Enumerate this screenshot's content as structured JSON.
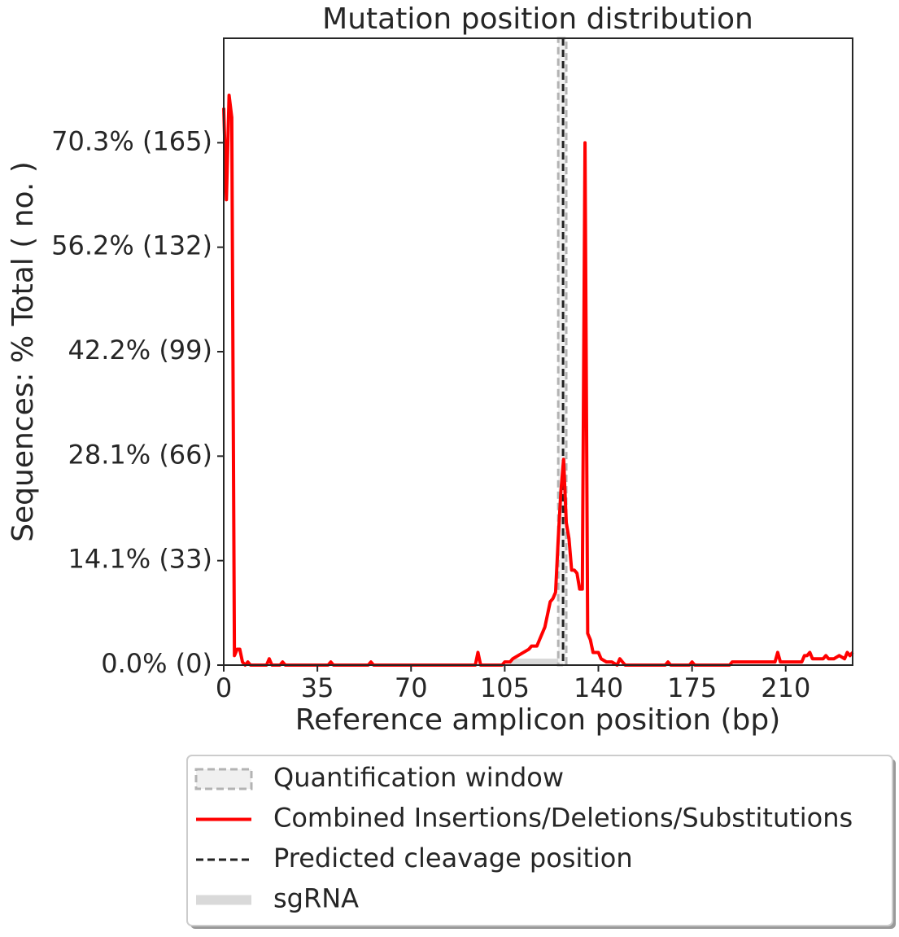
{
  "chart_data": {
    "type": "line",
    "title": "Mutation position distribution",
    "x_label": "Reference amplicon position (bp)",
    "y_label": "Sequences: % Total ( no. )",
    "xlim": [
      0,
      235
    ],
    "xticks": [
      0,
      35,
      70,
      105,
      140,
      175,
      210
    ],
    "ylim": [
      0,
      198
    ],
    "yticks": [
      {
        "value": 0,
        "label": "0.0% (0)"
      },
      {
        "value": 33,
        "label": "14.1% (33)"
      },
      {
        "value": 66,
        "label": "28.1% (66)"
      },
      {
        "value": 99,
        "label": "42.2% (99)"
      },
      {
        "value": 132,
        "label": "56.2% (132)"
      },
      {
        "value": 165,
        "label": "70.3% (165)"
      }
    ],
    "x": [
      0,
      1,
      2,
      3,
      4,
      5,
      6,
      7,
      8,
      9,
      10,
      11,
      16,
      17,
      18,
      21,
      22,
      23,
      39,
      40,
      41,
      54,
      55,
      56,
      94,
      95,
      96,
      104,
      105,
      107,
      108,
      110,
      112,
      114,
      115,
      117,
      118,
      120,
      122,
      123,
      124,
      125,
      126,
      127,
      128,
      129,
      130,
      131,
      132,
      133,
      134,
      135,
      136,
      137,
      138,
      140,
      141,
      143,
      145,
      147,
      148,
      149,
      150,
      165,
      166,
      167,
      174,
      175,
      176,
      189,
      190,
      192,
      200,
      201,
      206,
      207,
      208,
      215,
      216,
      217,
      218,
      219,
      220,
      222,
      224,
      225,
      226,
      228,
      230,
      232,
      233,
      234,
      235
    ],
    "series": [
      {
        "name": "Combined Insertions/Deletions/Substitutions",
        "color": "#ff0000",
        "values": [
          176,
          147,
          180,
          173,
          3,
          5,
          5,
          1,
          0,
          1,
          0,
          0,
          0,
          2,
          0,
          0,
          1,
          0,
          0,
          1,
          0,
          0,
          1,
          0,
          0,
          4,
          0,
          0,
          1,
          1,
          2,
          3,
          4,
          5,
          6,
          6,
          8,
          12,
          20,
          21,
          23,
          40,
          55,
          65,
          45,
          40,
          30,
          30,
          29,
          24,
          24,
          165,
          10,
          8,
          4,
          4,
          2,
          1,
          1,
          0,
          2,
          1,
          0,
          0,
          1,
          0,
          0,
          1,
          0,
          0,
          1,
          1,
          1,
          1,
          1,
          4,
          1,
          1,
          1,
          3,
          3,
          4,
          2,
          2,
          2,
          3,
          2,
          2,
          3,
          2,
          4,
          3,
          4
        ]
      }
    ],
    "quantification_window": {
      "name": "Quantification window",
      "range": [
        125,
        128
      ],
      "color": "#b3b3b3"
    },
    "cleavage_position": {
      "name": "Predicted cleavage position",
      "x": 126.8,
      "color": "#222222"
    },
    "sgrna": {
      "name": "sgRNA",
      "range": [
        107,
        127
      ],
      "color": "#d9d9d9"
    },
    "legend": "below"
  }
}
